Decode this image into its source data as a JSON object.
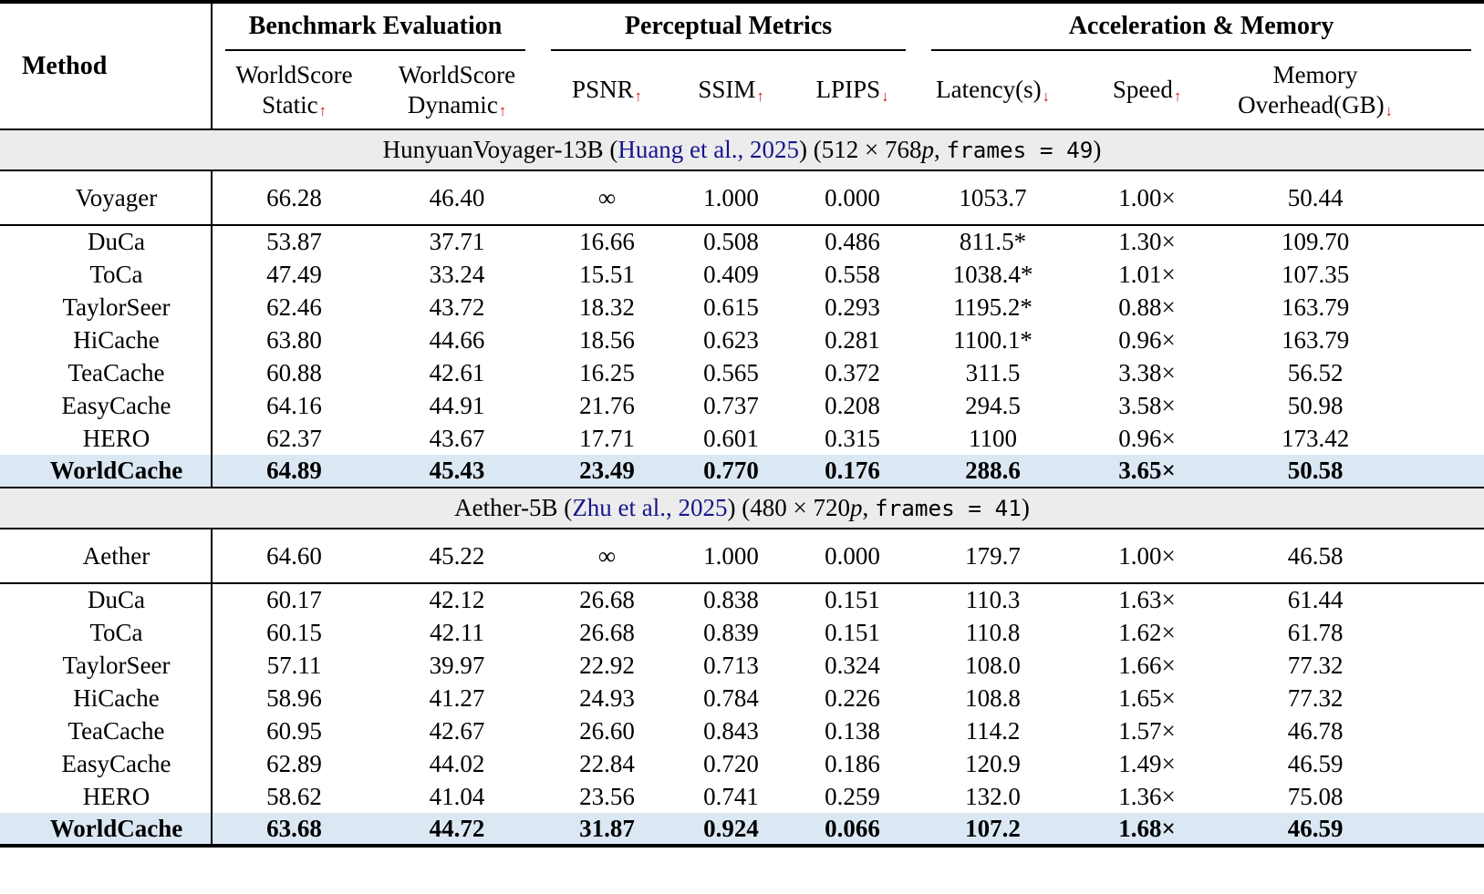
{
  "table": {
    "method_header": "Method",
    "arrow_up": "↑",
    "arrow_down": "↓",
    "colors": {
      "highlight_row": "#dbe8f4",
      "section_band": "#ececec",
      "arrow_red": "#cc1111",
      "citation_blue": "#16168c"
    },
    "groups": [
      {
        "label": "Benchmark Evaluation",
        "span": 2
      },
      {
        "label": "Perceptual Metrics",
        "span": 3
      },
      {
        "label": "Acceleration & Memory",
        "span": 3
      }
    ],
    "metrics": [
      {
        "label": "WorldScore Static",
        "lines": [
          "WorldScore",
          "Static"
        ],
        "direction": "up"
      },
      {
        "label": "WorldScore Dynamic",
        "lines": [
          "WorldScore",
          "Dynamic"
        ],
        "direction": "up"
      },
      {
        "label": "PSNR",
        "lines": [
          "PSNR"
        ],
        "direction": "up"
      },
      {
        "label": "SSIM",
        "lines": [
          "SSIM"
        ],
        "direction": "up"
      },
      {
        "label": "LPIPS",
        "lines": [
          "LPIPS"
        ],
        "direction": "down"
      },
      {
        "label": "Latency(s)",
        "lines": [
          "Latency(s)"
        ],
        "direction": "down"
      },
      {
        "label": "Speed",
        "lines": [
          "Speed"
        ],
        "direction": "up"
      },
      {
        "label": "Memory Overhead(GB)",
        "lines": [
          "Memory",
          "Overhead(GB)"
        ],
        "direction": "down"
      }
    ],
    "sections": [
      {
        "header_segments": [
          {
            "text": "HunyuanVoyager-13B (",
            "style": "plain"
          },
          {
            "text": "Huang et al., 2025",
            "style": "citation"
          },
          {
            "text": ") (512 × 768",
            "style": "plain"
          },
          {
            "text": "p",
            "style": "italic"
          },
          {
            "text": ", ",
            "style": "plain"
          },
          {
            "text": "frames = 49",
            "style": "mono"
          },
          {
            "text": ")",
            "style": "plain"
          }
        ],
        "rows": [
          {
            "method": "Voyager",
            "baseline": true,
            "highlight": false,
            "values": [
              "66.28",
              "46.40",
              "∞",
              "1.000",
              "0.000",
              "1053.7",
              "1.00×",
              "50.44"
            ]
          },
          {
            "method": "DuCa",
            "baseline": false,
            "highlight": false,
            "values": [
              "53.87",
              "37.71",
              "16.66",
              "0.508",
              "0.486",
              "811.5*",
              "1.30×",
              "109.70"
            ]
          },
          {
            "method": "ToCa",
            "baseline": false,
            "highlight": false,
            "values": [
              "47.49",
              "33.24",
              "15.51",
              "0.409",
              "0.558",
              "1038.4*",
              "1.01×",
              "107.35"
            ]
          },
          {
            "method": "TaylorSeer",
            "baseline": false,
            "highlight": false,
            "values": [
              "62.46",
              "43.72",
              "18.32",
              "0.615",
              "0.293",
              "1195.2*",
              "0.88×",
              "163.79"
            ]
          },
          {
            "method": "HiCache",
            "baseline": false,
            "highlight": false,
            "values": [
              "63.80",
              "44.66",
              "18.56",
              "0.623",
              "0.281",
              "1100.1*",
              "0.96×",
              "163.79"
            ]
          },
          {
            "method": "TeaCache",
            "baseline": false,
            "highlight": false,
            "values": [
              "60.88",
              "42.61",
              "16.25",
              "0.565",
              "0.372",
              "311.5",
              "3.38×",
              "56.52"
            ]
          },
          {
            "method": "EasyCache",
            "baseline": false,
            "highlight": false,
            "values": [
              "64.16",
              "44.91",
              "21.76",
              "0.737",
              "0.208",
              "294.5",
              "3.58×",
              "50.98"
            ]
          },
          {
            "method": "HERO",
            "baseline": false,
            "highlight": false,
            "values": [
              "62.37",
              "43.67",
              "17.71",
              "0.601",
              "0.315",
              "1100",
              "0.96×",
              "173.42"
            ]
          },
          {
            "method": "WorldCache",
            "baseline": false,
            "highlight": true,
            "values": [
              "64.89",
              "45.43",
              "23.49",
              "0.770",
              "0.176",
              "288.6",
              "3.65×",
              "50.58"
            ]
          }
        ]
      },
      {
        "header_segments": [
          {
            "text": "Aether-5B (",
            "style": "plain"
          },
          {
            "text": "Zhu et al., 2025",
            "style": "citation"
          },
          {
            "text": ") (480 × 720",
            "style": "plain"
          },
          {
            "text": "p",
            "style": "italic"
          },
          {
            "text": ", ",
            "style": "plain"
          },
          {
            "text": "frames = 41",
            "style": "mono"
          },
          {
            "text": ")",
            "style": "plain"
          }
        ],
        "rows": [
          {
            "method": "Aether",
            "baseline": true,
            "highlight": false,
            "values": [
              "64.60",
              "45.22",
              "∞",
              "1.000",
              "0.000",
              "179.7",
              "1.00×",
              "46.58"
            ]
          },
          {
            "method": "DuCa",
            "baseline": false,
            "highlight": false,
            "values": [
              "60.17",
              "42.12",
              "26.68",
              "0.838",
              "0.151",
              "110.3",
              "1.63×",
              "61.44"
            ]
          },
          {
            "method": "ToCa",
            "baseline": false,
            "highlight": false,
            "values": [
              "60.15",
              "42.11",
              "26.68",
              "0.839",
              "0.151",
              "110.8",
              "1.62×",
              "61.78"
            ]
          },
          {
            "method": "TaylorSeer",
            "baseline": false,
            "highlight": false,
            "values": [
              "57.11",
              "39.97",
              "22.92",
              "0.713",
              "0.324",
              "108.0",
              "1.66×",
              "77.32"
            ]
          },
          {
            "method": "HiCache",
            "baseline": false,
            "highlight": false,
            "values": [
              "58.96",
              "41.27",
              "24.93",
              "0.784",
              "0.226",
              "108.8",
              "1.65×",
              "77.32"
            ]
          },
          {
            "method": "TeaCache",
            "baseline": false,
            "highlight": false,
            "values": [
              "60.95",
              "42.67",
              "26.60",
              "0.843",
              "0.138",
              "114.2",
              "1.57×",
              "46.78"
            ]
          },
          {
            "method": "EasyCache",
            "baseline": false,
            "highlight": false,
            "values": [
              "62.89",
              "44.02",
              "22.84",
              "0.720",
              "0.186",
              "120.9",
              "1.49×",
              "46.59"
            ]
          },
          {
            "method": "HERO",
            "baseline": false,
            "highlight": false,
            "values": [
              "58.62",
              "41.04",
              "23.56",
              "0.741",
              "0.259",
              "132.0",
              "1.36×",
              "75.08"
            ]
          },
          {
            "method": "WorldCache",
            "baseline": false,
            "highlight": true,
            "values": [
              "63.68",
              "44.72",
              "31.87",
              "0.924",
              "0.066",
              "107.2",
              "1.68×",
              "46.59"
            ]
          }
        ]
      }
    ]
  }
}
